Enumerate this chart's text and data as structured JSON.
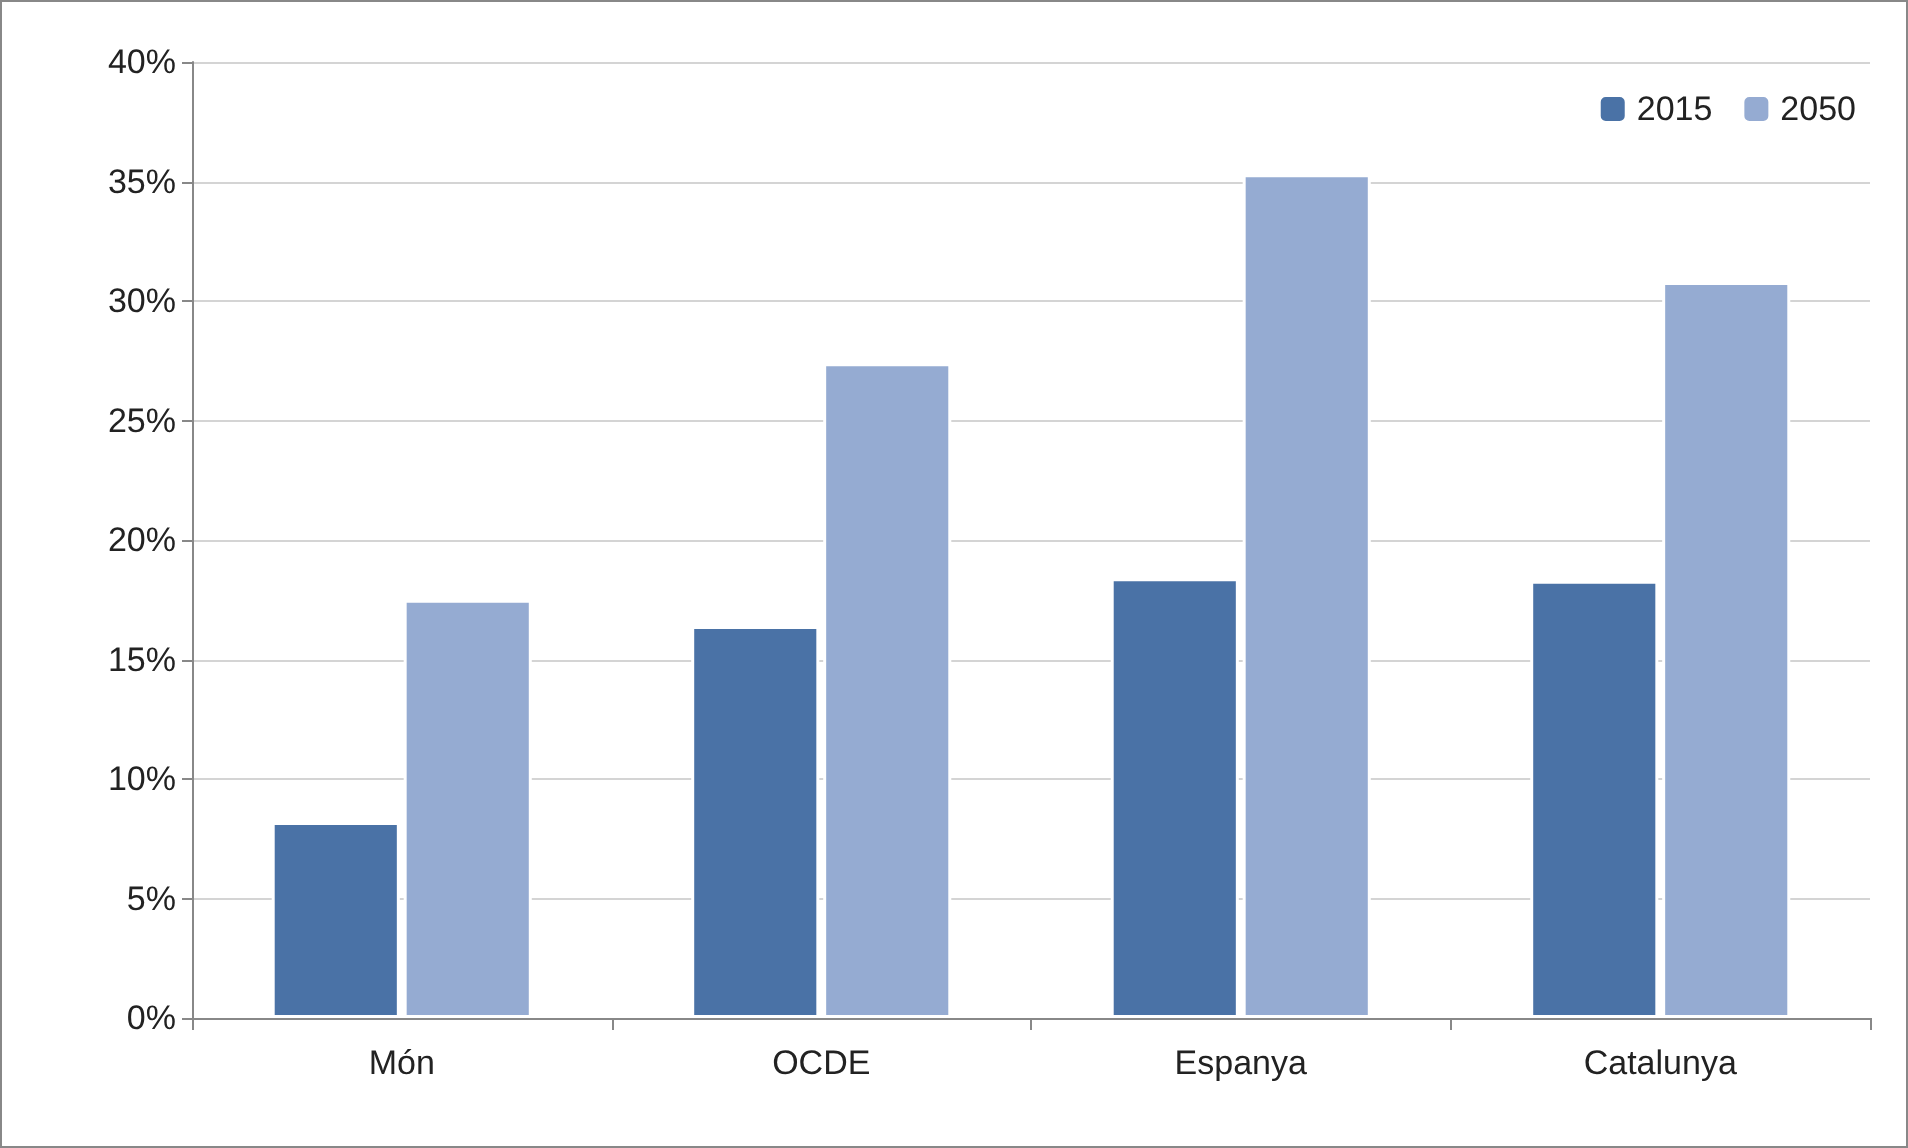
{
  "chart_data": {
    "type": "bar",
    "categories": [
      "Món",
      "OCDE",
      "Espanya",
      "Catalunya"
    ],
    "series": [
      {
        "name": "2015",
        "color": "#4a72a6",
        "values": [
          8.2,
          16.4,
          18.4,
          18.3
        ]
      },
      {
        "name": "2050",
        "color": "#95abd2",
        "values": [
          17.5,
          27.4,
          35.3,
          30.8
        ]
      }
    ],
    "ylim": [
      0,
      40
    ],
    "yticks": [
      {
        "value": 0,
        "label": "0%"
      },
      {
        "value": 5,
        "label": "5%"
      },
      {
        "value": 10,
        "label": "10%"
      },
      {
        "value": 15,
        "label": "15%"
      },
      {
        "value": 20,
        "label": "20%"
      },
      {
        "value": 25,
        "label": "25%"
      },
      {
        "value": 30,
        "label": "30%"
      },
      {
        "value": 35,
        "label": "35%"
      },
      {
        "value": 40,
        "label": "40%"
      }
    ],
    "grid": "y",
    "legend": "top right"
  }
}
